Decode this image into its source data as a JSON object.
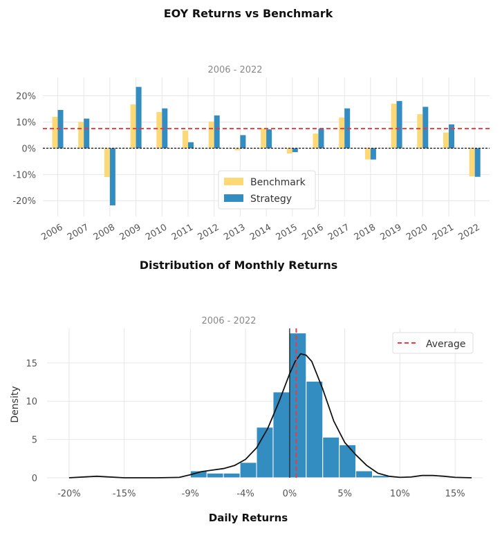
{
  "chart_data": [
    {
      "type": "bar",
      "title": "EOY Returns  vs Benchmark",
      "subtitle": "2006 - 2022",
      "categories": [
        "2006",
        "2007",
        "2008",
        "2009",
        "2010",
        "2011",
        "2012",
        "2013",
        "2014",
        "2015",
        "2016",
        "2017",
        "2018",
        "2019",
        "2020",
        "2021",
        "2022"
      ],
      "series": [
        {
          "name": "Benchmark",
          "color": "#fdd876",
          "values": [
            12.0,
            10.0,
            -11.0,
            16.7,
            13.8,
            6.7,
            10.2,
            -0.8,
            7.6,
            -2.0,
            5.6,
            11.7,
            -4.3,
            17.0,
            13.0,
            6.0,
            -10.7
          ]
        },
        {
          "name": "Strategy",
          "color": "#348dc1",
          "values": [
            14.6,
            11.3,
            -21.8,
            23.4,
            15.2,
            2.3,
            12.5,
            5.0,
            7.2,
            -1.5,
            7.4,
            15.2,
            -4.3,
            18.0,
            15.8,
            9.1,
            -10.9
          ]
        }
      ],
      "ylim": [
        -26,
        27
      ],
      "yticks": [
        -20,
        -10,
        0,
        10,
        20
      ],
      "ytick_labels": [
        "-20%",
        "-10%",
        "0%",
        "10%",
        "20%"
      ],
      "mean_line": 7.5,
      "mean_line_color": "#ff3333",
      "zero_line_color": "#111111",
      "legend": "lower-center"
    },
    {
      "type": "histogram",
      "title": "Distribution of Monthly Returns",
      "subtitle": "2006 - 2022",
      "xlabel": "Daily Returns",
      "ylabel": "Density",
      "bar_color": "#348dc1",
      "bins": [
        {
          "x0": -9.0,
          "x1": -7.5,
          "density": 0.9
        },
        {
          "x0": -7.5,
          "x1": -6.0,
          "density": 0.6
        },
        {
          "x0": -6.0,
          "x1": -4.5,
          "density": 0.6
        },
        {
          "x0": -4.5,
          "x1": -3.0,
          "density": 2.0
        },
        {
          "x0": -3.0,
          "x1": -1.5,
          "density": 6.6
        },
        {
          "x0": -1.5,
          "x1": 0.0,
          "density": 11.2
        },
        {
          "x0": 0.0,
          "x1": 1.5,
          "density": 18.9
        },
        {
          "x0": 1.5,
          "x1": 3.0,
          "density": 12.6
        },
        {
          "x0": 3.0,
          "x1": 4.5,
          "density": 5.3
        },
        {
          "x0": 4.5,
          "x1": 6.0,
          "density": 4.3
        },
        {
          "x0": 6.0,
          "x1": 7.5,
          "density": 0.9
        },
        {
          "x0": 7.5,
          "x1": 9.0,
          "density": 0.3
        }
      ],
      "kde": {
        "x": [
          -20,
          -17.5,
          -15,
          -12,
          -10,
          -9,
          -8,
          -7,
          -6,
          -5,
          -4,
          -3,
          -2,
          -1,
          0,
          0.5,
          1,
          1.5,
          2,
          3,
          4,
          5,
          6,
          7,
          8,
          9,
          10,
          11,
          12,
          13,
          14,
          15,
          16.5
        ],
        "y": [
          0.0,
          0.2,
          0.0,
          0.0,
          0.05,
          0.4,
          0.8,
          1.0,
          1.2,
          1.6,
          2.4,
          3.9,
          6.4,
          9.8,
          13.6,
          15.2,
          16.2,
          16.0,
          15.2,
          11.6,
          7.4,
          4.6,
          3.0,
          1.6,
          0.6,
          0.2,
          0.05,
          0.1,
          0.3,
          0.3,
          0.2,
          0.05,
          0.0
        ]
      },
      "xlim": [
        -22,
        17.5
      ],
      "ylim": [
        0,
        19.5
      ],
      "xticks": [
        -20,
        -15,
        -9,
        -4,
        0,
        5,
        10,
        15
      ],
      "xtick_labels": [
        "-20%",
        "-15%",
        "-9%",
        "-4%",
        "0%",
        "5%",
        "10%",
        "15%"
      ],
      "yticks": [
        0,
        5,
        10,
        15
      ],
      "ytick_labels": [
        "0",
        "5",
        "10",
        "15"
      ],
      "zero_line": 0,
      "average_line": 0.6,
      "average_line_color": "#ff3333",
      "legend_label": "Average",
      "legend": "upper-right"
    }
  ]
}
